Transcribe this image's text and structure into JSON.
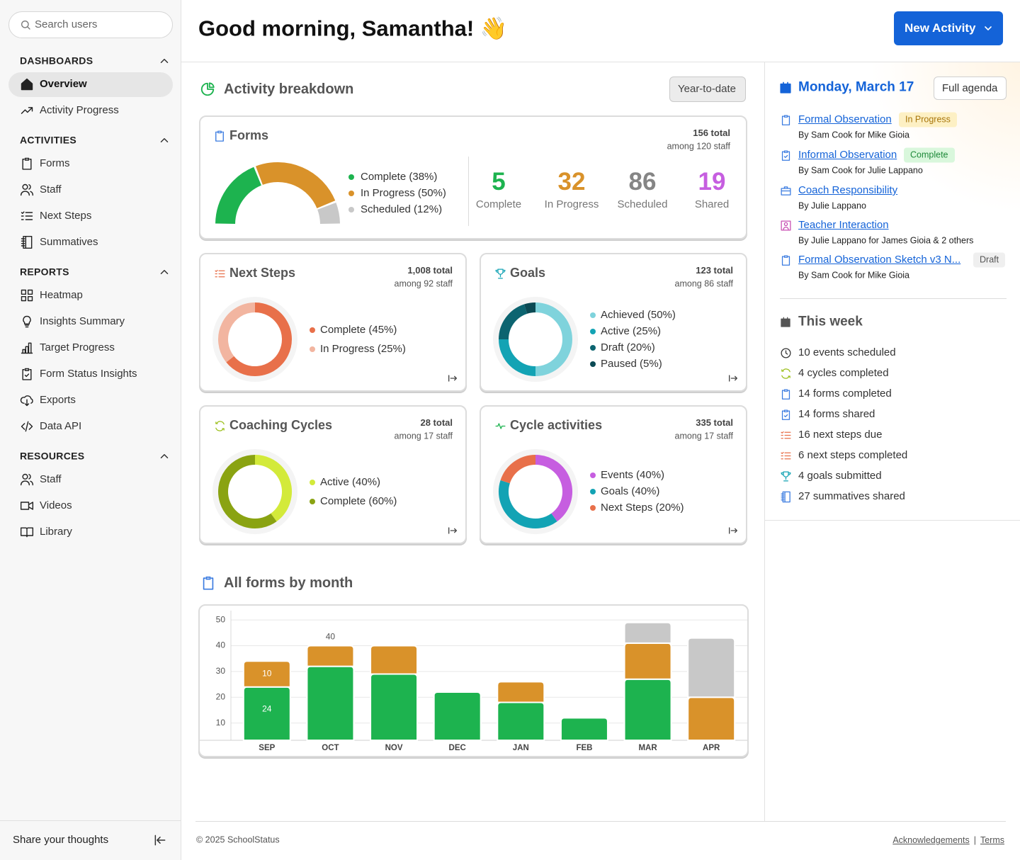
{
  "sidebar": {
    "search_placeholder": "Search users",
    "sections": [
      {
        "title": "DASHBOARDS",
        "items": [
          "Overview",
          "Activity Progress"
        ]
      },
      {
        "title": "ACTIVITIES",
        "items": [
          "Forms",
          "Staff",
          "Next Steps",
          "Summatives"
        ]
      },
      {
        "title": "REPORTS",
        "items": [
          "Heatmap",
          "Insights Summary",
          "Target Progress",
          "Form Status Insights",
          "Exports",
          "Data API"
        ]
      },
      {
        "title": "RESOURCES",
        "items": [
          "Staff",
          "Videos",
          "Library"
        ]
      }
    ],
    "feedback": "Share your thoughts"
  },
  "header": {
    "greeting": "Good morning, Samantha! 👋",
    "button": "New Activity"
  },
  "breakdown": {
    "title": "Activity breakdown",
    "filter": "Year-to-date",
    "forms": {
      "title": "Forms",
      "total": "156 total",
      "staff": "among 120 staff",
      "legend": [
        {
          "label": "Complete (38%)",
          "value": 38,
          "color": "#1db34f"
        },
        {
          "label": "In Progress (50%)",
          "value": 50,
          "color": "#d9922a"
        },
        {
          "label": "Scheduled (12%)",
          "value": 12,
          "color": "#c8c8c8"
        }
      ],
      "stats": [
        {
          "value": 5,
          "label": "Complete",
          "color": "#1db34f"
        },
        {
          "value": 32,
          "label": "In Progress",
          "color": "#d9922a"
        },
        {
          "value": 86,
          "label": "Scheduled",
          "color": "#858585"
        },
        {
          "value": 19,
          "label": "Shared",
          "color": "#c65ee0"
        }
      ]
    },
    "cards": [
      {
        "title": "Next Steps",
        "total": "1,008 total",
        "staff": "among 92 staff",
        "legend": [
          {
            "label": "Complete (45%)",
            "value": 45,
            "color": "#e8704a"
          },
          {
            "label": "In Progress (25%)",
            "value": 25,
            "color": "#f2b5a0"
          }
        ]
      },
      {
        "title": "Goals",
        "total": "123 total",
        "staff": "among 86 staff",
        "legend": [
          {
            "label": "Achieved (50%)",
            "value": 50,
            "color": "#7fd3dc"
          },
          {
            "label": "Active (25%)",
            "value": 25,
            "color": "#13a3b4"
          },
          {
            "label": "Draft (20%)",
            "value": 20,
            "color": "#0c6470"
          },
          {
            "label": "Paused (5%)",
            "value": 5,
            "color": "#0b4a54"
          }
        ]
      },
      {
        "title": "Coaching Cycles",
        "total": "28 total",
        "staff": "among 17 staff",
        "legend": [
          {
            "label": "Active (40%)",
            "value": 40,
            "color": "#d3ea3a"
          },
          {
            "label": "Complete (60%)",
            "value": 60,
            "color": "#8aa312"
          }
        ]
      },
      {
        "title": "Cycle activities",
        "total": "335 total",
        "staff": "among 17 staff",
        "legend": [
          {
            "label": "Events (40%)",
            "value": 40,
            "color": "#c65ee0"
          },
          {
            "label": "Goals (40%)",
            "value": 40,
            "color": "#13a3b4"
          },
          {
            "label": "Next Steps (20%)",
            "value": 20,
            "color": "#e8704a"
          }
        ]
      }
    ]
  },
  "monthly": {
    "title": "All forms by month",
    "chart": {
      "type": "bar",
      "categories": [
        "SEP",
        "OCT",
        "NOV",
        "DEC",
        "JAN",
        "FEB",
        "MAR",
        "APR"
      ],
      "series": [
        {
          "color": "#1db34f",
          "values": [
            24,
            32,
            29,
            22,
            18,
            12,
            27,
            0
          ],
          "value_labels": [
            "24",
            null,
            null,
            null,
            null,
            null,
            null,
            null
          ]
        },
        {
          "color": "#d9922a",
          "values": [
            10,
            8,
            11,
            0,
            8,
            0,
            14,
            20
          ],
          "value_labels": [
            "10",
            null,
            null,
            null,
            null,
            null,
            null,
            null
          ]
        },
        {
          "color": "#c8c8c8",
          "values": [
            0,
            0,
            0,
            0,
            0,
            0,
            8,
            23
          ]
        }
      ],
      "total_labels": [
        null,
        "40",
        null,
        null,
        null,
        null,
        null,
        null
      ],
      "ylim": [
        3.3,
        53.6
      ],
      "yticks": [
        10,
        20,
        30,
        40,
        50
      ],
      "grid": true
    }
  },
  "agenda": {
    "date": "Monday, March 17",
    "button": "Full agenda",
    "items": [
      {
        "title": "Formal Observation",
        "status": "In Progress",
        "by": "By Sam Cook for Mike Gioia"
      },
      {
        "title": "Informal Observation",
        "status": "Complete",
        "by": "By Sam Cook for Julie Lappano"
      },
      {
        "title": "Coach Responsibility",
        "by": "By Julie Lappano"
      },
      {
        "title": "Teacher Interaction",
        "by": "By Julie Lappano for James Gioia & 2 others"
      },
      {
        "title": "Formal Observation Sketch v3 N...",
        "status": "Draft",
        "by": "By Sam Cook for Mike Gioia"
      }
    ]
  },
  "week": {
    "title": "This week",
    "items": [
      "10 events scheduled",
      "4 cycles completed",
      "14 forms completed",
      "14 forms shared",
      "16 next steps due",
      "6 next steps completed",
      "4 goals submitted",
      "27 summatives shared"
    ]
  },
  "footer": {
    "copyright": "© 2025 SchoolStatus",
    "links": [
      "Acknowledgements",
      "Terms"
    ]
  }
}
